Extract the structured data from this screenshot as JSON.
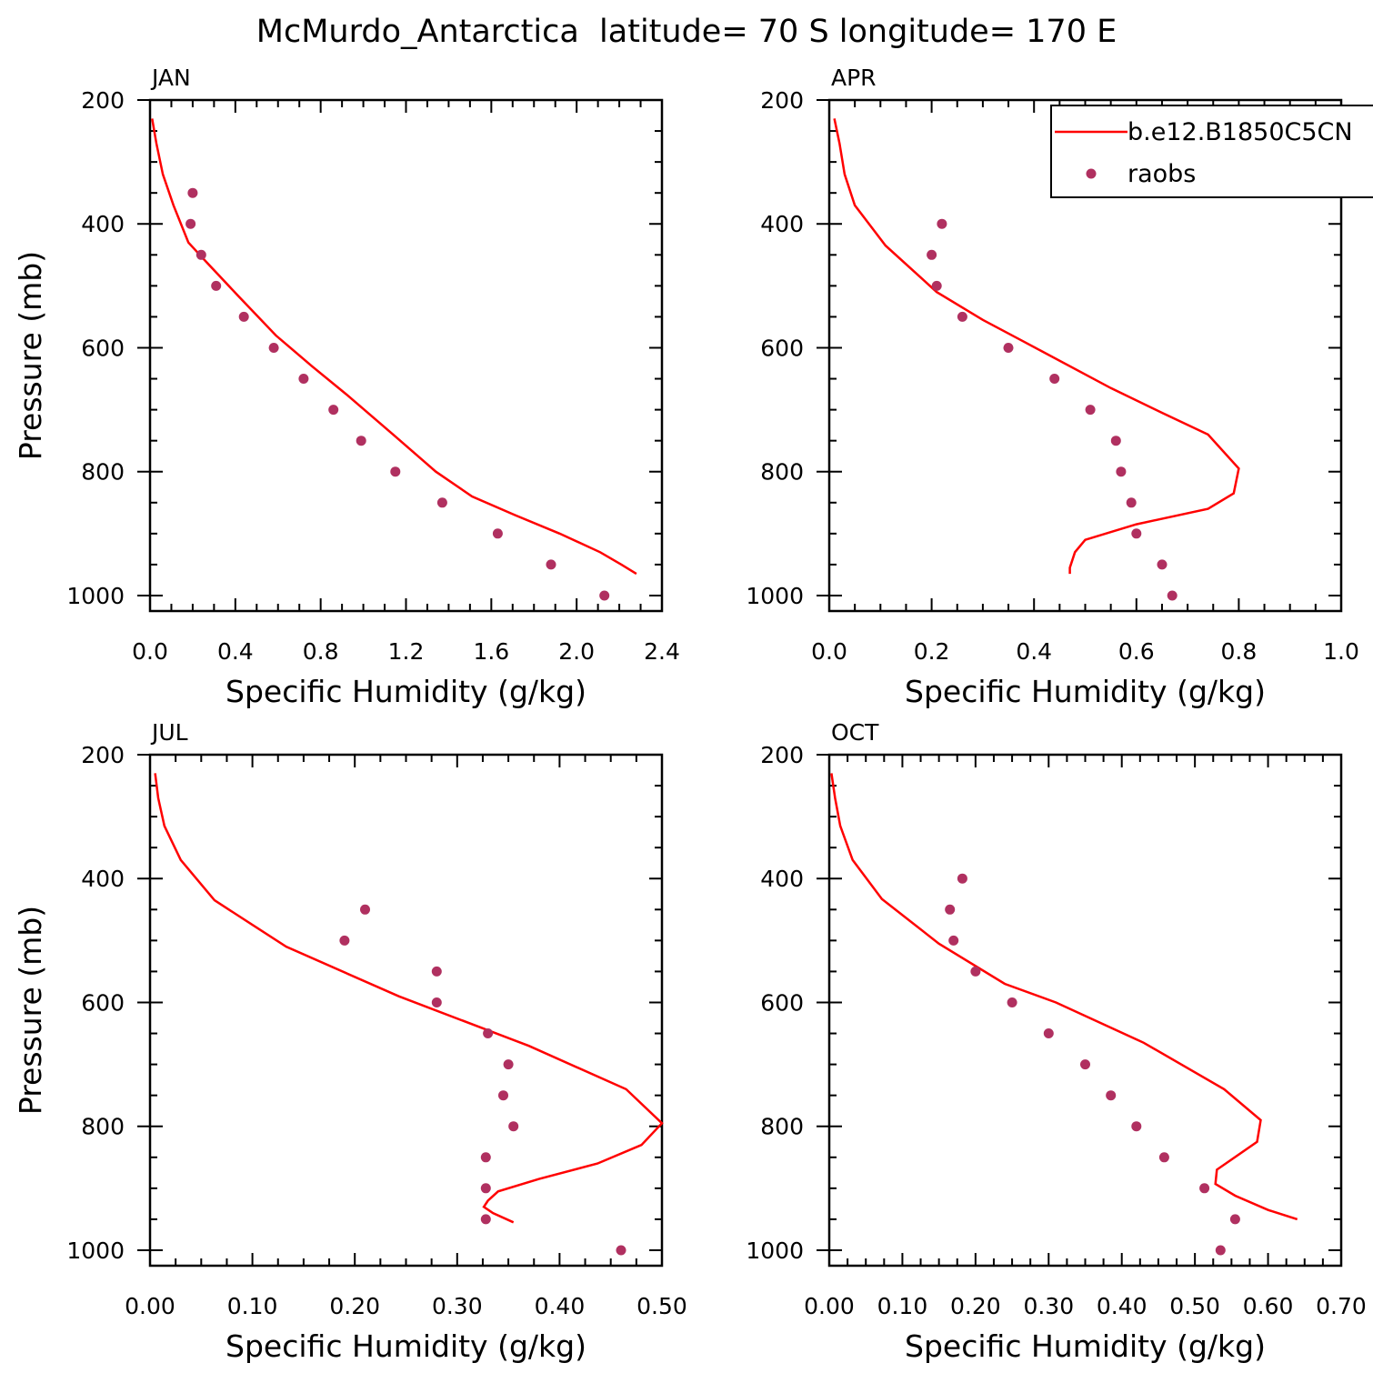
{
  "figure": {
    "title": "McMurdo_Antarctica  latitude= 70 S longitude= 170 E"
  },
  "legend": {
    "placement": "top-right of APR panel",
    "entries": [
      {
        "label": "b.e12.B1850C5CN",
        "kind": "line",
        "color": "#ff0000"
      },
      {
        "label": "raobs",
        "kind": "marker",
        "color": "#b03060"
      }
    ]
  },
  "chart_data": [
    {
      "type": "line",
      "panel_label": "JAN",
      "xlabel": "Specific Humidity (g/kg)",
      "ylabel": "Pressure (mb)",
      "xlim": [
        0.0,
        2.4
      ],
      "ylim": [
        1025,
        200
      ],
      "y_reversed": true,
      "xticks": [
        0.0,
        0.4,
        0.8,
        1.2,
        1.6,
        2.0,
        2.4
      ],
      "xtick_labels": [
        "0.0",
        "0.4",
        "0.8",
        "1.2",
        "1.6",
        "2.0",
        "2.4"
      ],
      "yticks": [
        200,
        400,
        600,
        800,
        1000
      ],
      "ytick_labels": [
        "200",
        "400",
        "600",
        "800",
        "1000"
      ],
      "series": [
        {
          "name": "b.e12.B1850C5CN",
          "kind": "line",
          "x": [
            0.01,
            0.03,
            0.06,
            0.11,
            0.18,
            0.26,
            0.41,
            0.59,
            0.76,
            0.92,
            1.14,
            1.34,
            1.51,
            1.71,
            1.92,
            2.11,
            2.21,
            2.28
          ],
          "y": [
            230,
            270,
            320,
            370,
            430,
            460,
            515,
            580,
            630,
            675,
            740,
            800,
            840,
            870,
            900,
            930,
            950,
            965
          ]
        },
        {
          "name": "raobs",
          "kind": "marker",
          "x": [
            0.2,
            0.19,
            0.24,
            0.31,
            0.44,
            0.58,
            0.72,
            0.86,
            0.99,
            1.15,
            1.37,
            1.63,
            1.88,
            2.13
          ],
          "y": [
            350,
            400,
            450,
            500,
            550,
            600,
            650,
            700,
            750,
            800,
            850,
            900,
            950,
            1000
          ]
        }
      ]
    },
    {
      "type": "line",
      "panel_label": "APR",
      "xlabel": "Specific Humidity (g/kg)",
      "ylabel": "",
      "xlim": [
        0.0,
        1.0
      ],
      "ylim": [
        1025,
        200
      ],
      "y_reversed": true,
      "xticks": [
        0.0,
        0.2,
        0.4,
        0.6,
        0.8,
        1.0
      ],
      "xtick_labels": [
        "0.0",
        "0.2",
        "0.4",
        "0.6",
        "0.8",
        "1.0"
      ],
      "yticks": [
        200,
        400,
        600,
        800,
        1000
      ],
      "ytick_labels": [
        "200",
        "400",
        "600",
        "800",
        "1000"
      ],
      "series": [
        {
          "name": "b.e12.B1850C5CN",
          "kind": "line",
          "x": [
            0.01,
            0.02,
            0.03,
            0.05,
            0.11,
            0.21,
            0.3,
            0.38,
            0.55,
            0.65,
            0.74,
            0.8,
            0.79,
            0.74,
            0.6,
            0.5,
            0.48,
            0.47,
            0.47
          ],
          "y": [
            230,
            270,
            320,
            370,
            435,
            510,
            555,
            590,
            665,
            705,
            740,
            795,
            835,
            860,
            885,
            910,
            930,
            955,
            965
          ]
        },
        {
          "name": "raobs",
          "kind": "marker",
          "x": [
            0.22,
            0.2,
            0.21,
            0.26,
            0.35,
            0.44,
            0.51,
            0.56,
            0.57,
            0.59,
            0.6,
            0.65,
            0.67
          ],
          "y": [
            400,
            450,
            500,
            550,
            600,
            650,
            700,
            750,
            800,
            850,
            900,
            950,
            1000
          ]
        }
      ]
    },
    {
      "type": "line",
      "panel_label": "JUL",
      "xlabel": "Specific Humidity (g/kg)",
      "ylabel": "Pressure (mb)",
      "xlim": [
        0.0,
        0.5
      ],
      "ylim": [
        1025,
        200
      ],
      "y_reversed": true,
      "xticks": [
        0.0,
        0.1,
        0.2,
        0.3,
        0.4,
        0.5
      ],
      "xtick_labels": [
        "0.00",
        "0.10",
        "0.20",
        "0.30",
        "0.40",
        "0.50"
      ],
      "yticks": [
        200,
        400,
        600,
        800,
        1000
      ],
      "ytick_labels": [
        "200",
        "400",
        "600",
        "800",
        "1000"
      ],
      "series": [
        {
          "name": "b.e12.B1850C5CN",
          "kind": "line",
          "x": [
            0.005,
            0.008,
            0.014,
            0.03,
            0.063,
            0.133,
            0.243,
            0.37,
            0.465,
            0.5,
            0.48,
            0.437,
            0.38,
            0.34,
            0.33,
            0.326,
            0.335,
            0.355
          ],
          "y": [
            230,
            270,
            315,
            370,
            435,
            510,
            590,
            670,
            740,
            795,
            830,
            860,
            885,
            905,
            920,
            930,
            940,
            955
          ]
        },
        {
          "name": "raobs",
          "kind": "marker",
          "x": [
            0.21,
            0.19,
            0.28,
            0.28,
            0.33,
            0.35,
            0.345,
            0.355,
            0.328,
            0.328,
            0.328,
            0.46
          ],
          "y": [
            450,
            500,
            550,
            600,
            650,
            700,
            750,
            800,
            850,
            900,
            950,
            1000
          ]
        }
      ]
    },
    {
      "type": "line",
      "panel_label": "OCT",
      "xlabel": "Specific Humidity (g/kg)",
      "ylabel": "",
      "xlim": [
        0.0,
        0.7
      ],
      "ylim": [
        1025,
        200
      ],
      "y_reversed": true,
      "xticks": [
        0.0,
        0.1,
        0.2,
        0.3,
        0.4,
        0.5,
        0.6,
        0.7
      ],
      "xtick_labels": [
        "0.00",
        "0.10",
        "0.20",
        "0.30",
        "0.40",
        "0.50",
        "0.60",
        "0.70"
      ],
      "yticks": [
        200,
        400,
        600,
        800,
        1000
      ],
      "ytick_labels": [
        "200",
        "400",
        "600",
        "800",
        "1000"
      ],
      "series": [
        {
          "name": "b.e12.B1850C5CN",
          "kind": "line",
          "x": [
            0.003,
            0.008,
            0.015,
            0.032,
            0.072,
            0.15,
            0.24,
            0.31,
            0.43,
            0.54,
            0.59,
            0.585,
            0.53,
            0.528,
            0.555,
            0.6,
            0.64
          ],
          "y": [
            230,
            270,
            315,
            370,
            433,
            505,
            570,
            600,
            665,
            740,
            790,
            825,
            870,
            893,
            912,
            935,
            950
          ]
        },
        {
          "name": "raobs",
          "kind": "marker",
          "x": [
            0.182,
            0.165,
            0.17,
            0.2,
            0.25,
            0.3,
            0.35,
            0.385,
            0.42,
            0.458,
            0.513,
            0.555,
            0.535
          ],
          "y": [
            400,
            450,
            500,
            550,
            600,
            650,
            700,
            750,
            800,
            850,
            900,
            950,
            1000
          ]
        }
      ]
    }
  ]
}
